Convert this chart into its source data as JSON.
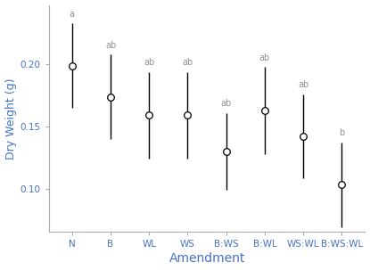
{
  "categories": [
    "N",
    "B",
    "WL",
    "WS",
    "B:WS",
    "B:WL",
    "WS:WL",
    "B:WS:WL"
  ],
  "means": [
    0.199,
    0.174,
    0.159,
    0.159,
    0.13,
    0.163,
    0.142,
    0.103
  ],
  "ci_lower": [
    0.165,
    0.14,
    0.124,
    0.124,
    0.099,
    0.128,
    0.108,
    0.069
  ],
  "ci_upper": [
    0.233,
    0.208,
    0.194,
    0.194,
    0.161,
    0.198,
    0.176,
    0.137
  ],
  "labels": [
    "a",
    "ab",
    "ab",
    "ab",
    "ab",
    "ab",
    "ab",
    "b"
  ],
  "xlabel": "Amendment",
  "ylabel": "Dry Weight (g)",
  "ylim": [
    0.065,
    0.248
  ],
  "yticks": [
    0.1,
    0.15,
    0.2
  ],
  "marker_color": "white",
  "marker_edge_color": "black",
  "line_color": "black",
  "label_color": "#909090",
  "axis_label_color": "#4472c4",
  "spine_color": "#aaaaaa",
  "tick_color": "#aaaaaa",
  "background_color": "white",
  "marker_size": 5.5,
  "marker_linewidth": 0.9,
  "line_width": 1.0,
  "label_fontsize": 7,
  "axis_label_fontsize": 9,
  "tick_fontsize": 7.5,
  "xlabel_fontsize": 10
}
